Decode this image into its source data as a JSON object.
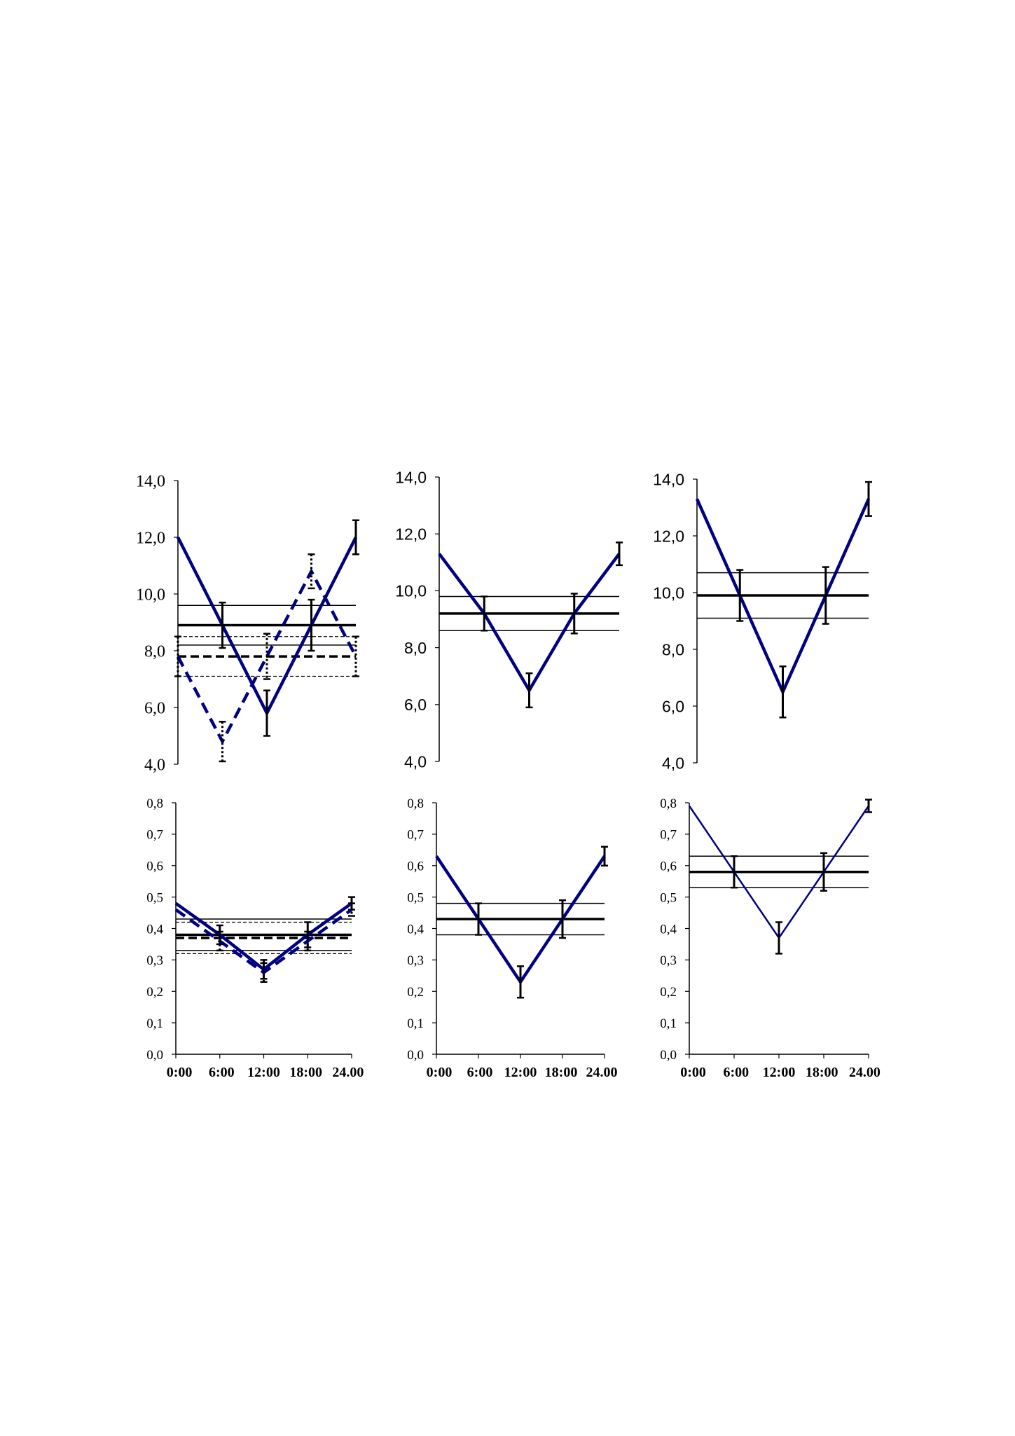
{
  "chart_data": [
    {
      "type": "line",
      "panel": "top-left",
      "ylim": [
        4.0,
        14.0
      ],
      "yticks": [
        "4,0",
        "6,0",
        "8,0",
        "10,0",
        "12,0",
        "14,0"
      ],
      "tick_font": "serif",
      "x": [
        0,
        6,
        12,
        18,
        24
      ],
      "series": [
        {
          "style": "solid",
          "color": "#000080",
          "values": [
            12.0,
            8.9,
            5.8,
            8.9,
            12.0
          ],
          "errors": [
            null,
            0.8,
            0.8,
            0.9,
            0.6
          ]
        },
        {
          "style": "dashed",
          "color": "#000080",
          "values": [
            7.8,
            4.8,
            7.8,
            10.8,
            7.8
          ],
          "errors": [
            0.7,
            0.7,
            0.8,
            0.6,
            0.7
          ]
        }
      ],
      "bands": [
        {
          "style": "solid",
          "mean": 8.9,
          "low": 8.2,
          "high": 9.6
        },
        {
          "style": "dashed",
          "mean": 7.8,
          "low": 7.1,
          "high": 8.5
        }
      ]
    },
    {
      "type": "line",
      "panel": "top-middle",
      "ylim": [
        4.0,
        14.0
      ],
      "yticks": [
        "4,0",
        "6,0",
        "8,0",
        "10,0",
        "12,0",
        "14,0"
      ],
      "tick_font": "sans",
      "x": [
        0,
        6,
        12,
        18,
        24
      ],
      "series": [
        {
          "style": "solid",
          "color": "#000080",
          "values": [
            11.3,
            9.2,
            6.5,
            9.2,
            11.3
          ],
          "errors": [
            null,
            0.6,
            0.6,
            0.7,
            0.4
          ]
        }
      ],
      "bands": [
        {
          "style": "solid",
          "mean": 9.2,
          "low": 8.6,
          "high": 9.8
        }
      ]
    },
    {
      "type": "line",
      "panel": "top-right",
      "ylim": [
        4.0,
        14.0
      ],
      "yticks": [
        "4,0",
        "6,0",
        "8,0",
        "10,0",
        "12,0",
        "14,0"
      ],
      "tick_font": "sans",
      "x": [
        0,
        6,
        12,
        18,
        24
      ],
      "series": [
        {
          "style": "solid",
          "color": "#000080",
          "values": [
            13.3,
            9.9,
            6.5,
            9.9,
            13.3
          ],
          "errors": [
            null,
            0.9,
            0.9,
            1.0,
            0.6
          ]
        }
      ],
      "bands": [
        {
          "style": "solid",
          "mean": 9.9,
          "low": 9.1,
          "high": 10.7
        }
      ]
    },
    {
      "type": "line",
      "panel": "bottom-left",
      "ylim": [
        0.0,
        0.8
      ],
      "yticks": [
        "0,0",
        "0,1",
        "0,2",
        "0,3",
        "0,4",
        "0,5",
        "0,6",
        "0,7",
        "0,8"
      ],
      "xticks": [
        "0:00",
        "6:00",
        "12:00",
        "18:00",
        "24.00"
      ],
      "tick_font": "serif",
      "x": [
        0,
        6,
        12,
        18,
        24
      ],
      "series": [
        {
          "style": "solid",
          "color": "#000080",
          "values": [
            0.48,
            0.38,
            0.27,
            0.38,
            0.48
          ],
          "errors": [
            null,
            0.03,
            0.03,
            0.04,
            0.02
          ]
        },
        {
          "style": "dashed",
          "color": "#000080",
          "values": [
            0.46,
            0.36,
            0.26,
            0.36,
            0.46
          ],
          "errors": [
            null,
            0.03,
            0.03,
            0.03,
            0.02
          ]
        }
      ],
      "bands": [
        {
          "style": "solid",
          "mean": 0.38,
          "low": 0.33,
          "high": 0.43
        },
        {
          "style": "dashed",
          "mean": 0.37,
          "low": 0.32,
          "high": 0.42
        }
      ]
    },
    {
      "type": "line",
      "panel": "bottom-middle",
      "ylim": [
        0.0,
        0.8
      ],
      "yticks": [
        "0,0",
        "0,1",
        "0,2",
        "0,3",
        "0,4",
        "0,5",
        "0,6",
        "0,7",
        "0,8"
      ],
      "xticks": [
        "0:00",
        "6:00",
        "12:00",
        "18:00",
        "24.00"
      ],
      "tick_font": "serif",
      "x": [
        0,
        6,
        12,
        18,
        24
      ],
      "series": [
        {
          "style": "solid",
          "color": "#000080",
          "values": [
            0.63,
            0.43,
            0.23,
            0.43,
            0.63
          ],
          "errors": [
            null,
            0.05,
            0.05,
            0.06,
            0.03
          ]
        }
      ],
      "bands": [
        {
          "style": "solid",
          "mean": 0.43,
          "low": 0.38,
          "high": 0.48
        }
      ]
    },
    {
      "type": "line",
      "panel": "bottom-right",
      "ylim": [
        0.0,
        0.8
      ],
      "yticks": [
        "0,0",
        "0,1",
        "0,2",
        "0,3",
        "0,4",
        "0,5",
        "0,6",
        "0,7",
        "0,8"
      ],
      "xticks": [
        "0:00",
        "6:00",
        "12:00",
        "18:00",
        "24.00"
      ],
      "tick_font": "serif",
      "x": [
        0,
        6,
        12,
        18,
        24
      ],
      "series": [
        {
          "style": "solid",
          "color": "#000080",
          "values": [
            0.79,
            0.58,
            0.37,
            0.58,
            0.79
          ],
          "errors": [
            null,
            0.05,
            0.05,
            0.06,
            0.02
          ]
        }
      ],
      "bands": [
        {
          "style": "solid",
          "mean": 0.58,
          "low": 0.53,
          "high": 0.63
        }
      ]
    }
  ]
}
